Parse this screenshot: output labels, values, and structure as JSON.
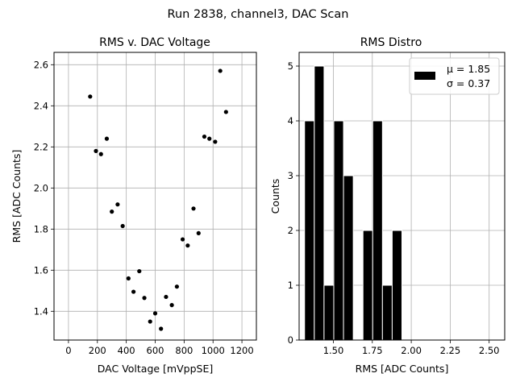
{
  "figure": {
    "suptitle": "Run 2838, channel3, DAC Scan"
  },
  "chart_data": [
    {
      "type": "scatter",
      "title": "RMS v. DAC Voltage",
      "xlabel": "DAC Voltage [mVppSE]",
      "ylabel": "RMS [ADC Counts]",
      "xlim": [
        -100,
        1300
      ],
      "ylim": [
        1.26,
        2.66
      ],
      "xticks": [
        0,
        200,
        400,
        600,
        800,
        1000,
        1200
      ],
      "yticks": [
        1.4,
        1.6,
        1.8,
        2.0,
        2.2,
        2.4,
        2.6
      ],
      "grid": true,
      "marker_color": "#000000",
      "points": [
        {
          "x": 150,
          "y": 2.445
        },
        {
          "x": 190,
          "y": 2.18
        },
        {
          "x": 225,
          "y": 2.165
        },
        {
          "x": 265,
          "y": 2.24
        },
        {
          "x": 300,
          "y": 1.885
        },
        {
          "x": 340,
          "y": 1.92
        },
        {
          "x": 375,
          "y": 1.815
        },
        {
          "x": 415,
          "y": 1.56
        },
        {
          "x": 450,
          "y": 1.495
        },
        {
          "x": 490,
          "y": 1.595
        },
        {
          "x": 525,
          "y": 1.465
        },
        {
          "x": 565,
          "y": 1.35
        },
        {
          "x": 600,
          "y": 1.39
        },
        {
          "x": 640,
          "y": 1.315
        },
        {
          "x": 675,
          "y": 1.47
        },
        {
          "x": 715,
          "y": 1.43
        },
        {
          "x": 750,
          "y": 1.52
        },
        {
          "x": 790,
          "y": 1.75
        },
        {
          "x": 825,
          "y": 1.72
        },
        {
          "x": 865,
          "y": 1.9
        },
        {
          "x": 900,
          "y": 1.78
        },
        {
          "x": 940,
          "y": 2.25
        },
        {
          "x": 975,
          "y": 2.24
        },
        {
          "x": 1015,
          "y": 2.225
        },
        {
          "x": 1050,
          "y": 2.57
        },
        {
          "x": 1090,
          "y": 2.37
        }
      ]
    },
    {
      "type": "bar",
      "title": "RMS Distro",
      "xlabel": "RMS [ADC Counts]",
      "ylabel": "Counts",
      "xlim": [
        1.28,
        2.6
      ],
      "ylim": [
        0,
        5.25
      ],
      "xticks": [
        "1.50",
        "1.75",
        "2.00",
        "2.25",
        "2.50"
      ],
      "xtick_values": [
        1.5,
        1.75,
        2.0,
        2.25,
        2.5
      ],
      "yticks": [
        0,
        1,
        2,
        3,
        4,
        5
      ],
      "grid": true,
      "legend": {
        "placement": "top-right",
        "lines": [
          "μ = 1.85",
          "σ = 0.37"
        ]
      },
      "bar_color": "#000000",
      "bar_edge_color": "#ffffff",
      "bins": [
        {
          "x0": 1.315,
          "x1": 1.3775,
          "count": 4
        },
        {
          "x0": 1.3775,
          "x1": 1.44,
          "count": 5
        },
        {
          "x0": 1.44,
          "x1": 1.5025,
          "count": 1
        },
        {
          "x0": 1.5025,
          "x1": 1.565,
          "count": 4
        },
        {
          "x0": 1.565,
          "x1": 1.6275,
          "count": 3
        },
        {
          "x0": 1.6275,
          "x1": 1.69,
          "count": 0
        },
        {
          "x0": 1.69,
          "x1": 1.7525,
          "count": 2
        },
        {
          "x0": 1.7525,
          "x1": 1.815,
          "count": 4
        },
        {
          "x0": 1.815,
          "x1": 1.8775,
          "count": 1
        },
        {
          "x0": 1.8775,
          "x1": 1.94,
          "count": 2
        }
      ]
    }
  ]
}
